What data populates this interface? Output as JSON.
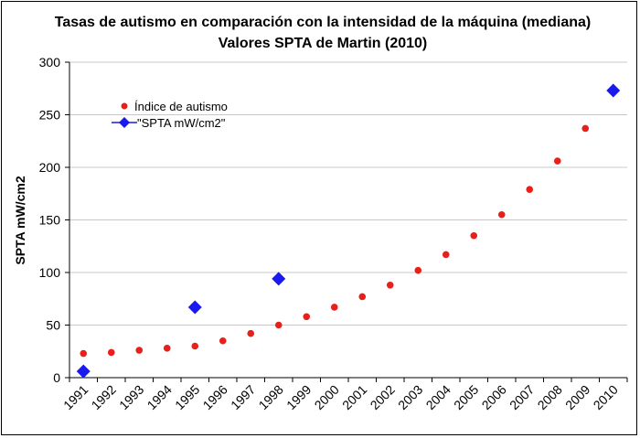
{
  "chart_data": {
    "type": "scatter",
    "title": "Tasas de autismo en comparación con la intensidad de la máquina (mediana)",
    "subtitle": "Valores SPTA de Martin (2010)",
    "xlabel": "",
    "ylabel": "SPTA mW/cm2",
    "ylim": [
      0,
      300
    ],
    "yticks": [
      0,
      50,
      100,
      150,
      200,
      250,
      300
    ],
    "categories": [
      "1991",
      "1992",
      "1993",
      "1994",
      "1995",
      "1996",
      "1997",
      "1998",
      "1999",
      "2000",
      "2001",
      "2002",
      "2003",
      "2004",
      "2005",
      "2006",
      "2007",
      "2008",
      "2009",
      "2010"
    ],
    "grid": "horizontal",
    "legend_position": "top-left",
    "series": [
      {
        "name": "Índice de autismo",
        "marker": "circle",
        "color": "#e8201c",
        "x": [
          1991,
          1992,
          1993,
          1994,
          1995,
          1996,
          1997,
          1998,
          1999,
          2000,
          2001,
          2002,
          2003,
          2004,
          2005,
          2006,
          2007,
          2008,
          2009
        ],
        "values": [
          23,
          24,
          26,
          28,
          30,
          35,
          42,
          50,
          58,
          67,
          77,
          88,
          102,
          117,
          135,
          155,
          179,
          206,
          237
        ]
      },
      {
        "name": "\"SPTA mW/cm2\"",
        "marker": "diamond",
        "color": "#1a1aee",
        "x": [
          1991,
          1995,
          1998,
          2010
        ],
        "values": [
          6,
          67,
          94,
          273
        ]
      }
    ]
  }
}
